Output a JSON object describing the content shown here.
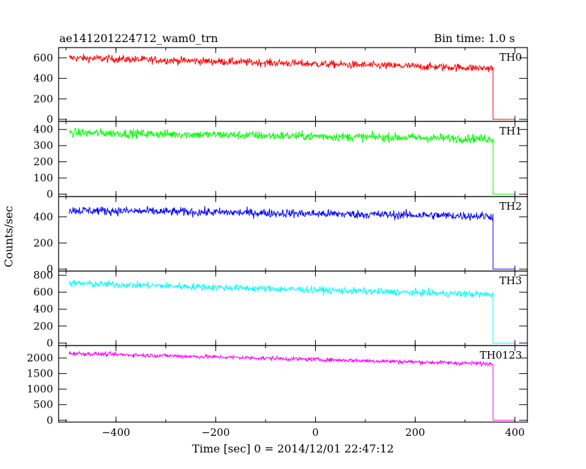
{
  "header": {
    "title": "ae141201224712_wam0_trn",
    "bin_time": "Bin time: 1.0 s"
  },
  "chart_data": {
    "type": "line",
    "title": "ae141201224712_wam0_trn",
    "subtitle": "Bin time: 1.0 s",
    "xlabel": "Time [sec] 0 = 2014/12/01 22:47:12",
    "ylabel": "Counts/sec",
    "xlim": [
      -515,
      425
    ],
    "x_ticks": [
      -400,
      -200,
      0,
      200,
      400
    ],
    "x_tick_labels": [
      "−400",
      "−200",
      "0",
      "200",
      "400"
    ],
    "grid": false,
    "panels": [
      {
        "name": "TH0",
        "color": "#ff0000",
        "ylim": [
          -20,
          700
        ],
        "y_ticks": [
          0,
          200,
          400,
          600
        ],
        "x": [
          -494,
          356,
          356,
          400
        ],
        "level": [
          600,
          498,
          0,
          0
        ],
        "noise": 36
      },
      {
        "name": "TH1",
        "color": "#00ff00",
        "ylim": [
          -15,
          450
        ],
        "y_ticks": [
          0,
          100,
          200,
          300,
          400
        ],
        "x": [
          -494,
          356,
          356,
          400
        ],
        "level": [
          380,
          342,
          0,
          0
        ],
        "noise": 26
      },
      {
        "name": "TH2",
        "color": "#0000ff",
        "ylim": [
          -15,
          555
        ],
        "y_ticks": [
          0,
          200,
          400
        ],
        "x": [
          -494,
          356,
          356,
          400
        ],
        "level": [
          450,
          405,
          0,
          0
        ],
        "noise": 32
      },
      {
        "name": "TH3",
        "color": "#00ffff",
        "ylim": [
          -30,
          850
        ],
        "y_ticks": [
          0,
          200,
          400,
          600,
          800
        ],
        "x": [
          -494,
          356,
          356,
          400
        ],
        "level": [
          705,
          570,
          0,
          0
        ],
        "noise": 40
      },
      {
        "name": "TH0123",
        "color": "#ff00ff",
        "ylim": [
          -60,
          2400
        ],
        "y_ticks": [
          0,
          500,
          1000,
          1500,
          2000
        ],
        "x": [
          -494,
          356,
          356,
          400
        ],
        "level": [
          2150,
          1810,
          0,
          0
        ],
        "noise": 65
      }
    ]
  }
}
